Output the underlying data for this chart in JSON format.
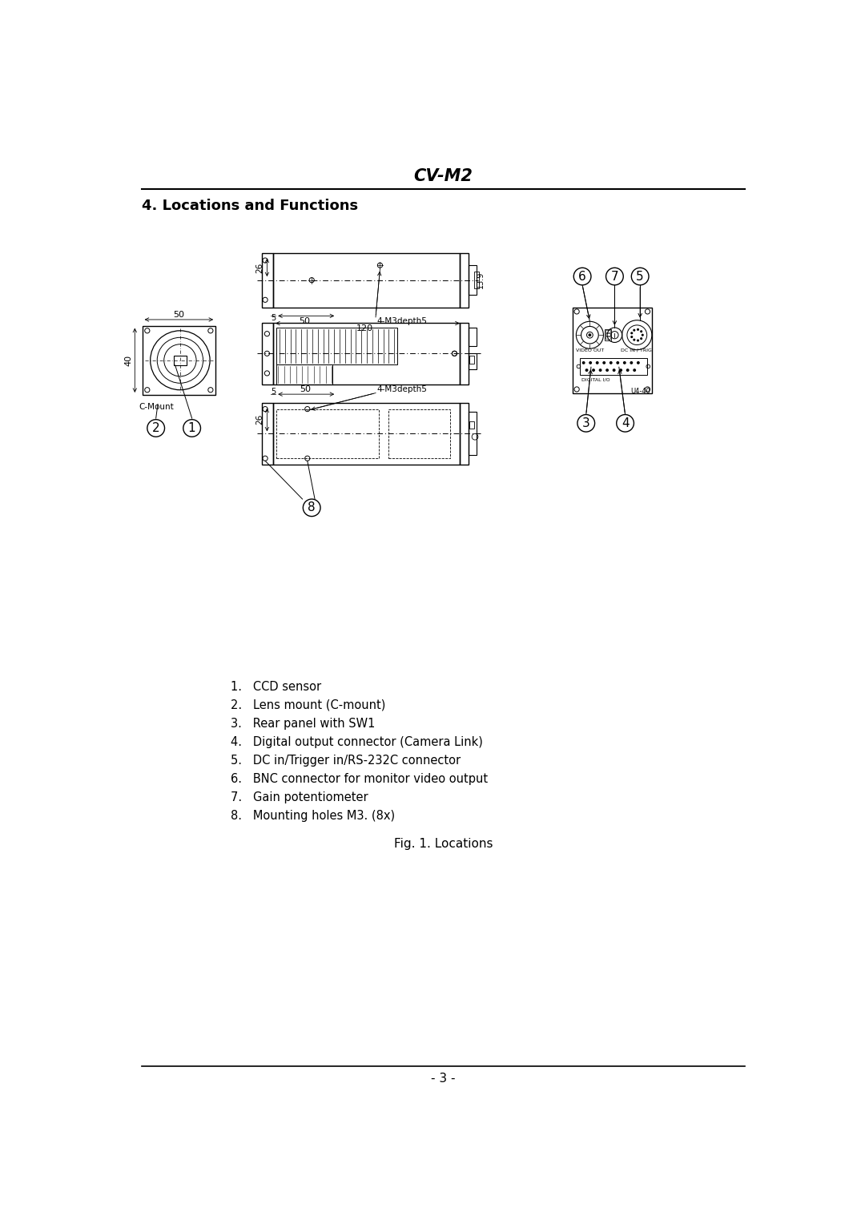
{
  "title": "CV-M2",
  "section_title": "4. Locations and Functions",
  "fig_caption": "Fig. 1. Locations",
  "page_number": "- 3 -",
  "list_items": [
    "1.   CCD sensor",
    "2.   Lens mount (C-mount)",
    "3.   Rear panel with SW1",
    "4.   Digital output connector (Camera Link)",
    "5.   DC in/Trigger in/RS-232C connector",
    "6.   BNC connector for monitor video output",
    "7.   Gain potentiometer",
    "8.   Mounting holes M3. (8x)"
  ],
  "bg_color": "#ffffff",
  "text_color": "#000000",
  "line_color": "#000000"
}
